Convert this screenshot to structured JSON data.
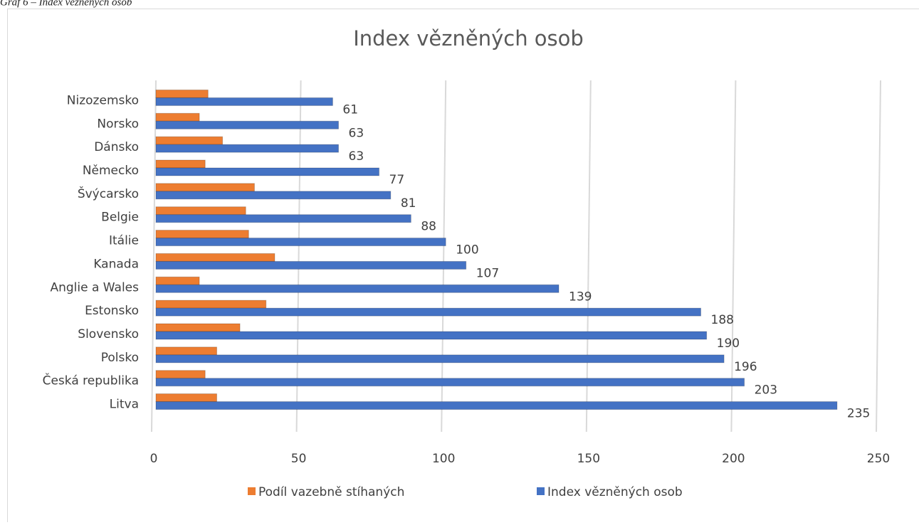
{
  "caption": "Graf 6 – Index vězněných osob",
  "chart_data": {
    "type": "barh",
    "title": "Index vězněných osob",
    "categories": [
      "Nizozemsko",
      "Norsko",
      "Dánsko",
      "Německo",
      "Švýcarsko",
      "Belgie",
      "Itálie",
      "Kanada",
      "Anglie a Wales",
      "Estonsko",
      "Slovensko",
      "Polsko",
      "Česká republika",
      "Litva"
    ],
    "series": [
      {
        "name": "Podíl vazebně stíhaných",
        "color": "#ed7d31",
        "show_values": false,
        "values": [
          18,
          15,
          23,
          17,
          34,
          31,
          32,
          41,
          15,
          38,
          29,
          21,
          17,
          21
        ]
      },
      {
        "name": "Index vězněných osob",
        "color": "#4472c4",
        "show_values": true,
        "values": [
          61,
          63,
          63,
          77,
          81,
          88,
          100,
          107,
          139,
          188,
          190,
          196,
          203,
          235
        ]
      }
    ],
    "xlim": [
      0,
      250
    ],
    "xticks": [
      0,
      50,
      100,
      150,
      200,
      250
    ],
    "grid": true,
    "legend": "bottom"
  }
}
